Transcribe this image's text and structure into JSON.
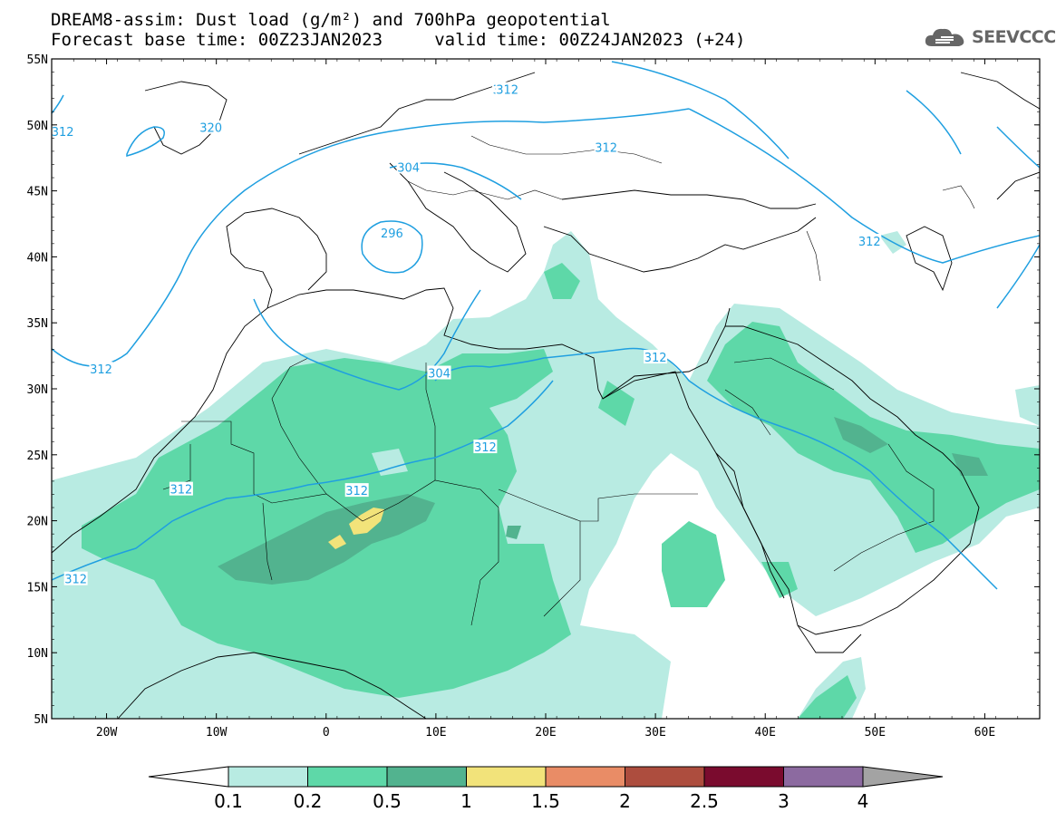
{
  "title": {
    "line1": "DREAM8-assim: Dust load (g/m²) and 700hPa geopotential",
    "line2": "Forecast base time: 00Z23JAN2023     valid time: 00Z24JAN2023 (+24)"
  },
  "logo": {
    "text": "SEEVCCC",
    "icon": "cloud-icon"
  },
  "map": {
    "lat_range": [
      5,
      55
    ],
    "lon_range": [
      -25,
      65
    ],
    "lat_ticks": [
      "55N",
      "50N",
      "45N",
      "40N",
      "35N",
      "30N",
      "25N",
      "20N",
      "15N",
      "10N",
      "5N"
    ],
    "lon_ticks": [
      "20W",
      "10W",
      "0",
      "10E",
      "20E",
      "30E",
      "40E",
      "50E",
      "60E"
    ],
    "contour_labels": [
      {
        "text": "312",
        "lon": 16.2,
        "lat": 52.7
      },
      {
        "text": "312",
        "lon": 16.5,
        "lat": 52.7
      },
      {
        "text": "320",
        "lon": -10.5,
        "lat": 49.8
      },
      {
        "text": "312",
        "lon": -24,
        "lat": 49.5
      },
      {
        "text": "312",
        "lon": 25.5,
        "lat": 48.3
      },
      {
        "text": "304",
        "lon": 7.5,
        "lat": 46.8
      },
      {
        "text": "296",
        "lon": 6,
        "lat": 41.8
      },
      {
        "text": "312",
        "lon": 49.5,
        "lat": 41.2
      },
      {
        "text": "312",
        "lon": -20.5,
        "lat": 31.5
      },
      {
        "text": "312",
        "lon": 30,
        "lat": 32.4
      },
      {
        "text": "304",
        "lon": 10.3,
        "lat": 31.2
      },
      {
        "text": "312",
        "lon": 14.5,
        "lat": 25.6
      },
      {
        "text": "312",
        "lon": -13.2,
        "lat": 22.4
      },
      {
        "text": "312",
        "lon": 2.8,
        "lat": 22.3
      },
      {
        "text": "312",
        "lon": -22.8,
        "lat": 15.6
      }
    ]
  },
  "colorbar": {
    "labels": [
      "0.1",
      "0.2",
      "0.5",
      "1",
      "1.5",
      "2",
      "2.5",
      "3",
      "4"
    ],
    "colors": [
      "#b8ebe2",
      "#5ed8a8",
      "#52b38f",
      "#f2e37a",
      "#e98c66",
      "#ad4d3e",
      "#7a0b2e",
      "#8c6aa0"
    ],
    "low_arrow": "#ffffff",
    "high_arrow": "#a3a3a3"
  }
}
